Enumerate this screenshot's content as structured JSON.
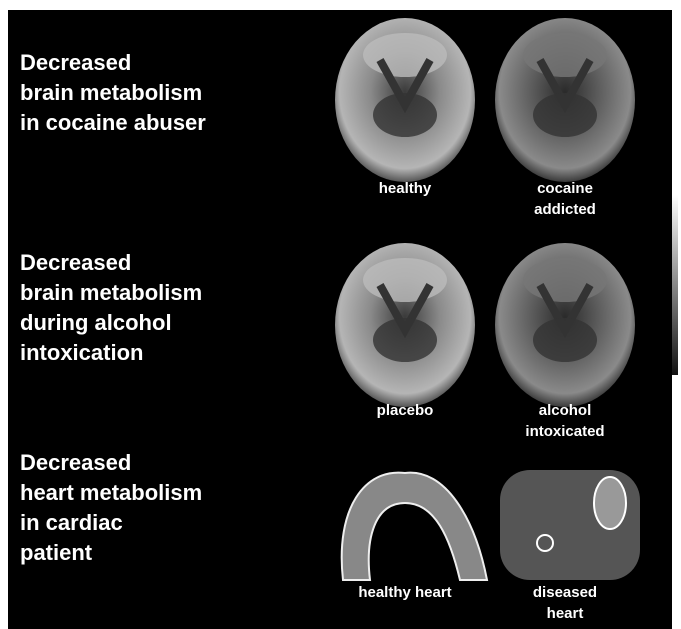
{
  "rows": [
    {
      "heading": [
        "Decreased",
        "brain metabolism",
        "in cocaine abuser"
      ],
      "images": [
        {
          "caption": [
            "healthy"
          ]
        },
        {
          "caption": [
            "cocaine",
            "addicted"
          ]
        }
      ]
    },
    {
      "heading": [
        "Decreased",
        "brain metabolism",
        "during alcohol",
        "intoxication"
      ],
      "images": [
        {
          "caption": [
            "placebo"
          ]
        },
        {
          "caption": [
            "alcohol",
            "intoxicated"
          ]
        }
      ]
    },
    {
      "heading": [
        "Decreased",
        "heart metabolism",
        "in cardiac",
        "patient"
      ],
      "images": [
        {
          "caption": [
            "healthy heart"
          ]
        },
        {
          "caption": [
            "diseased",
            "heart"
          ]
        }
      ]
    }
  ]
}
